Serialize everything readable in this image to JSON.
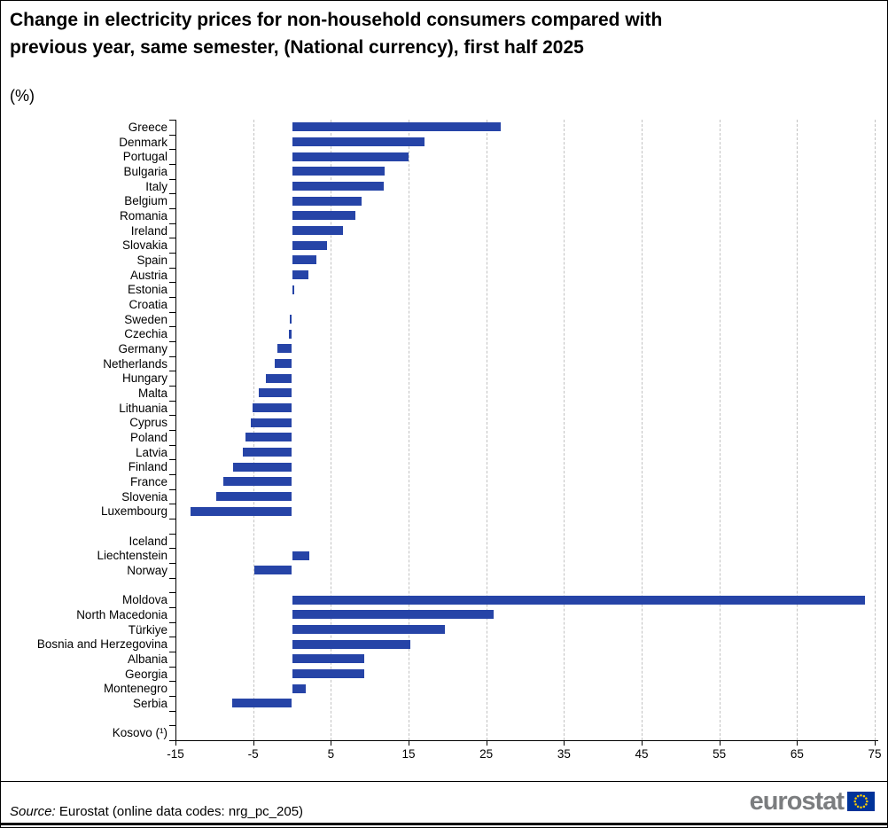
{
  "header": {
    "title": "Change in electricity prices for non-household consumers compared with previous year, same semester, (National currency), first half 2025",
    "subtitle": "(%)"
  },
  "footer": {
    "source_label": "Source:",
    "source_text": " Eurostat (online data codes: nrg_pc_205)",
    "logo_text": "eurostat"
  },
  "colors": {
    "bar": "#2644A7",
    "axis": "#000000",
    "grid": "#c2c2c2",
    "logo_gray": "#7b7d7f",
    "flag_blue": "#003399",
    "star_yellow": "#FFCC00"
  },
  "chart_data": {
    "type": "bar",
    "orientation": "horizontal",
    "title": "Change in electricity prices for non-household consumers compared with previous year, same semester, (National currency), first half 2025",
    "subtitle_unit": "(%)",
    "xlabel": "",
    "ylabel": "",
    "xlim": [
      -15,
      75
    ],
    "xticks": [
      -15,
      -5,
      5,
      15,
      25,
      35,
      45,
      55,
      65,
      75
    ],
    "grid": "vertical-dashed",
    "legend": "none",
    "rows": [
      {
        "label": "Greece",
        "value": 26.9
      },
      {
        "label": "Denmark",
        "value": 17.1
      },
      {
        "label": "Portugal",
        "value": 15.0
      },
      {
        "label": "Bulgaria",
        "value": 11.9
      },
      {
        "label": "Italy",
        "value": 11.8
      },
      {
        "label": "Belgium",
        "value": 9.0
      },
      {
        "label": "Romania",
        "value": 8.1
      },
      {
        "label": "Ireland",
        "value": 6.6
      },
      {
        "label": "Slovakia",
        "value": 4.5
      },
      {
        "label": "Spain",
        "value": 3.1
      },
      {
        "label": "Austria",
        "value": 2.1
      },
      {
        "label": "Estonia",
        "value": 0.3
      },
      {
        "label": "Croatia",
        "value": 0.0
      },
      {
        "label": "Sweden",
        "value": -0.3
      },
      {
        "label": "Czechia",
        "value": -0.4
      },
      {
        "label": "Germany",
        "value": -1.9
      },
      {
        "label": "Netherlands",
        "value": -2.2
      },
      {
        "label": "Hungary",
        "value": -3.4
      },
      {
        "label": "Malta",
        "value": -4.3
      },
      {
        "label": "Lithuania",
        "value": -5.1
      },
      {
        "label": "Cyprus",
        "value": -5.3
      },
      {
        "label": "Poland",
        "value": -6.0
      },
      {
        "label": "Latvia",
        "value": -6.3
      },
      {
        "label": "Finland",
        "value": -7.6
      },
      {
        "label": "France",
        "value": -8.8
      },
      {
        "label": "Slovenia",
        "value": -9.7
      },
      {
        "label": "Luxembourg",
        "value": -13.1
      },
      {
        "label": "",
        "value": null,
        "spacer": true
      },
      {
        "label": "Iceland",
        "value": 0.0
      },
      {
        "label": "Liechtenstein",
        "value": 2.2
      },
      {
        "label": "Norway",
        "value": -4.8
      },
      {
        "label": "",
        "value": null,
        "spacer": true
      },
      {
        "label": "Moldova",
        "value": 73.7
      },
      {
        "label": "North Macedonia",
        "value": 26.0
      },
      {
        "label": "Türkiye",
        "value": 19.7
      },
      {
        "label": "Bosnia and Herzegovina",
        "value": 15.2
      },
      {
        "label": "Albania",
        "value": 9.3
      },
      {
        "label": "Georgia",
        "value": 9.3
      },
      {
        "label": "Montenegro",
        "value": 1.8
      },
      {
        "label": "Serbia",
        "value": -7.7
      },
      {
        "label": "",
        "value": null,
        "spacer": true
      },
      {
        "label": "Kosovo (¹)",
        "value": null
      }
    ]
  }
}
